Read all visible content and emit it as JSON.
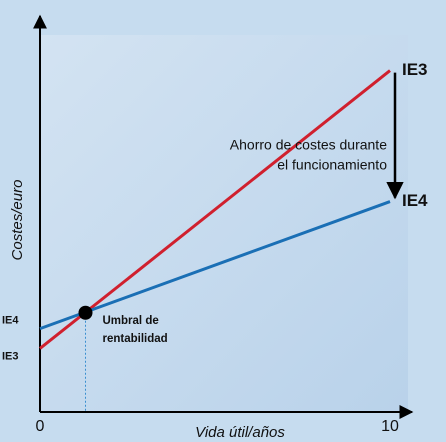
{
  "chart_data": {
    "type": "line",
    "xlabel": "Vida útil/años",
    "ylabel": "Costes/euro",
    "x": [
      0,
      10
    ],
    "xlim": [
      0,
      10.5
    ],
    "xticks": [
      0,
      10
    ],
    "ylim": [
      0,
      100
    ],
    "series": [
      {
        "name": "IE3",
        "color": "#d0202e",
        "values": [
          16,
          86
        ]
      },
      {
        "name": "IE4",
        "color": "#1a6fb5",
        "values": [
          21,
          53
        ]
      }
    ],
    "savings_annotation": [
      "Ahorro de costes durante",
      "el funcionamiento"
    ],
    "break_even": {
      "label": [
        "Umbral de",
        "rentabilidad"
      ],
      "x": 1.3,
      "y": 25
    }
  }
}
